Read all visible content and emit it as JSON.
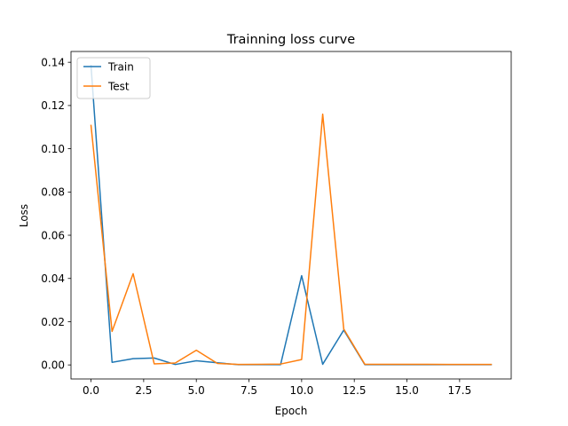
{
  "chart_data": {
    "type": "line",
    "title": "Trainning loss curve",
    "xlabel": "Epoch",
    "ylabel": "Loss",
    "xlim": [
      -0.95,
      19.95
    ],
    "ylim": [
      -0.0065,
      0.145
    ],
    "x_ticks": [
      0.0,
      2.5,
      5.0,
      7.5,
      10.0,
      12.5,
      15.0,
      17.5
    ],
    "x_tick_labels": [
      "0.0",
      "2.5",
      "5.0",
      "7.5",
      "10.0",
      "12.5",
      "15.0",
      "17.5"
    ],
    "y_ticks": [
      0.0,
      0.02,
      0.04,
      0.06,
      0.08,
      0.1,
      0.12,
      0.14
    ],
    "y_tick_labels": [
      "0.00",
      "0.02",
      "0.04",
      "0.06",
      "0.08",
      "0.10",
      "0.12",
      "0.14"
    ],
    "legend_position": "top-left",
    "x": [
      0,
      1,
      2,
      3,
      4,
      5,
      6,
      7,
      8,
      9,
      10,
      11,
      12,
      13,
      14,
      15,
      16,
      17,
      18,
      19
    ],
    "series": [
      {
        "name": "Train",
        "color": "#1f77b4",
        "values": [
          0.1385,
          0.0012,
          0.0029,
          0.0032,
          0.0002,
          0.0019,
          0.001,
          0.0001,
          0.0001,
          0.0001,
          0.0413,
          0.0003,
          0.0161,
          0.0001,
          0.0001,
          0.0001,
          0.0001,
          0.0001,
          0.0001,
          0.0001
        ]
      },
      {
        "name": "Test",
        "color": "#ff7f0e",
        "values": [
          0.1108,
          0.0155,
          0.0422,
          0.0005,
          0.0009,
          0.0068,
          0.0007,
          0.0002,
          0.0003,
          0.0004,
          0.0025,
          0.116,
          0.0166,
          0.0003,
          0.0003,
          0.0003,
          0.0003,
          0.0002,
          0.0002,
          0.0002
        ]
      }
    ]
  }
}
